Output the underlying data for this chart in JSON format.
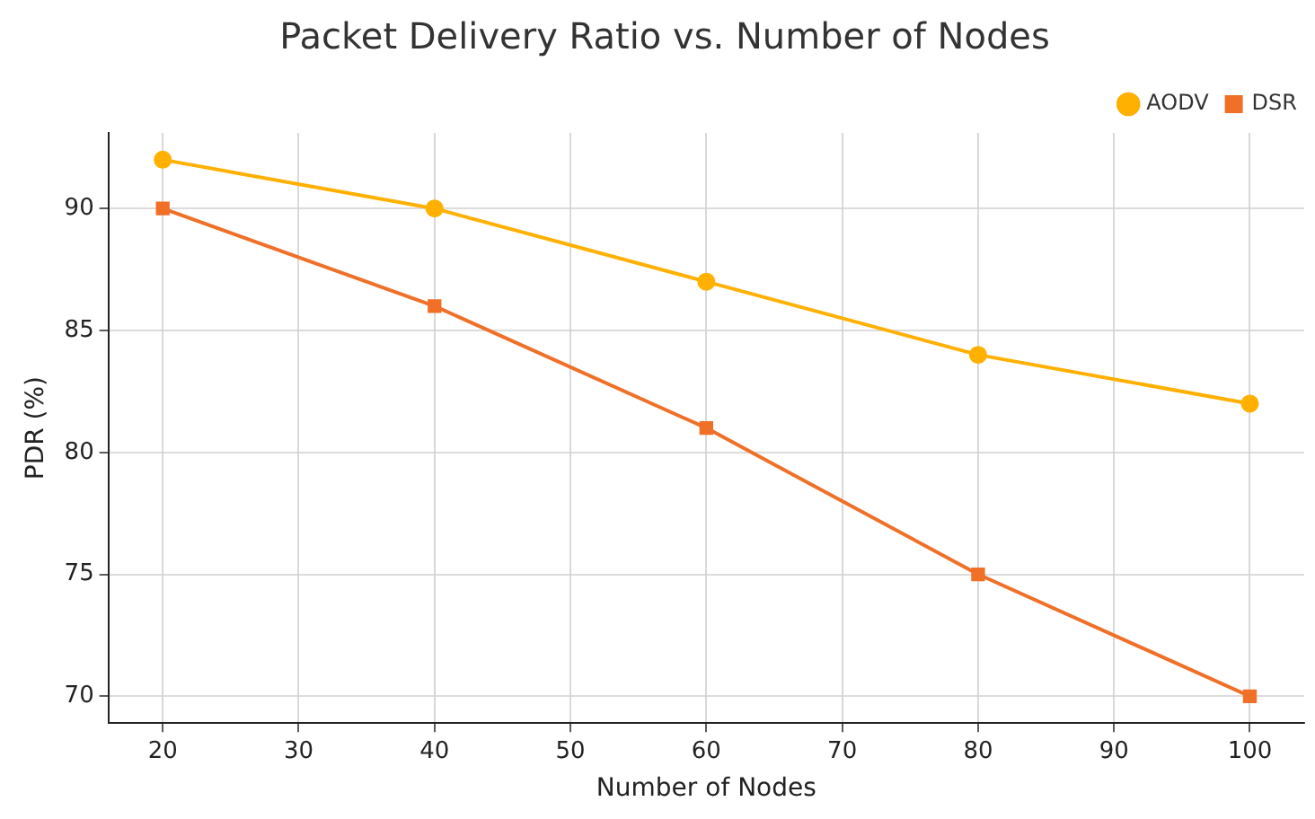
{
  "chart_data": {
    "type": "line",
    "title": "Packet Delivery Ratio vs. Number of Nodes",
    "xlabel": "Number of Nodes",
    "ylabel": "PDR (%)",
    "x": [
      20,
      40,
      60,
      80,
      100
    ],
    "series": [
      {
        "name": "AODV",
        "color": "#ffb000",
        "marker": "circle",
        "values": [
          92,
          90,
          87,
          84,
          82
        ]
      },
      {
        "name": "DSR",
        "color": "#f07028",
        "marker": "square",
        "values": [
          90,
          86,
          81,
          75,
          70
        ]
      }
    ],
    "xlim": [
      16,
      104
    ],
    "xticks": [
      20,
      30,
      40,
      50,
      60,
      70,
      80,
      90,
      100
    ],
    "ylim": [
      68.9,
      93.1
    ],
    "yticks": [
      70,
      75,
      80,
      85,
      90
    ],
    "grid": true,
    "legend": "top right",
    "line_style": "solid"
  }
}
